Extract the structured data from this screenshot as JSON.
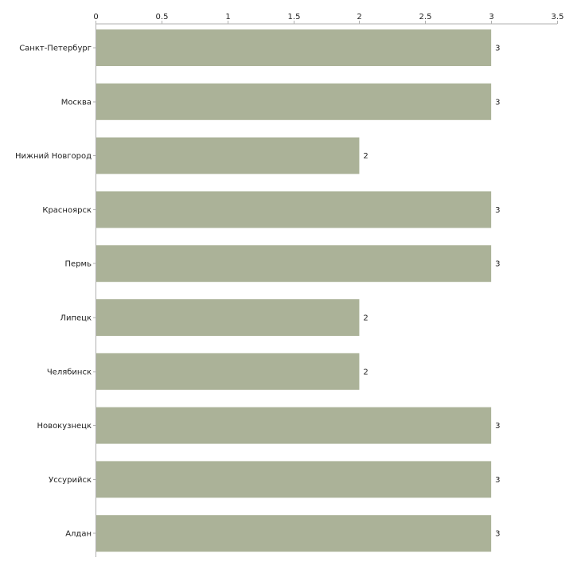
{
  "chart_data": {
    "type": "bar",
    "orientation": "horizontal",
    "title": "",
    "xlabel": "",
    "ylabel": "",
    "categories": [
      "Санкт-Петербург",
      "Москва",
      "Нижний Новгород",
      "Красноярск",
      "Пермь",
      "Липецк",
      "Челябинск",
      "Новокузнецк",
      "Уссурийск",
      "Алдан"
    ],
    "values": [
      3,
      3,
      2,
      3,
      3,
      2,
      2,
      3,
      3,
      3
    ],
    "value_labels": [
      "3",
      "3",
      "2",
      "3",
      "3",
      "2",
      "2",
      "3",
      "3",
      "3"
    ],
    "xlim": [
      0,
      3.5
    ],
    "ticks": [
      0,
      0.5,
      1,
      1.5,
      2,
      2.5,
      3,
      3.5
    ],
    "tick_labels": [
      "0",
      "0.5",
      "1",
      "1.5",
      "2",
      "2.5",
      "3",
      "3.5"
    ],
    "axis_position": "top",
    "grid": false,
    "legend": "none",
    "colors": {
      "bar": "#abb298",
      "axis": "#b0b0b0",
      "text": "#222222"
    }
  }
}
